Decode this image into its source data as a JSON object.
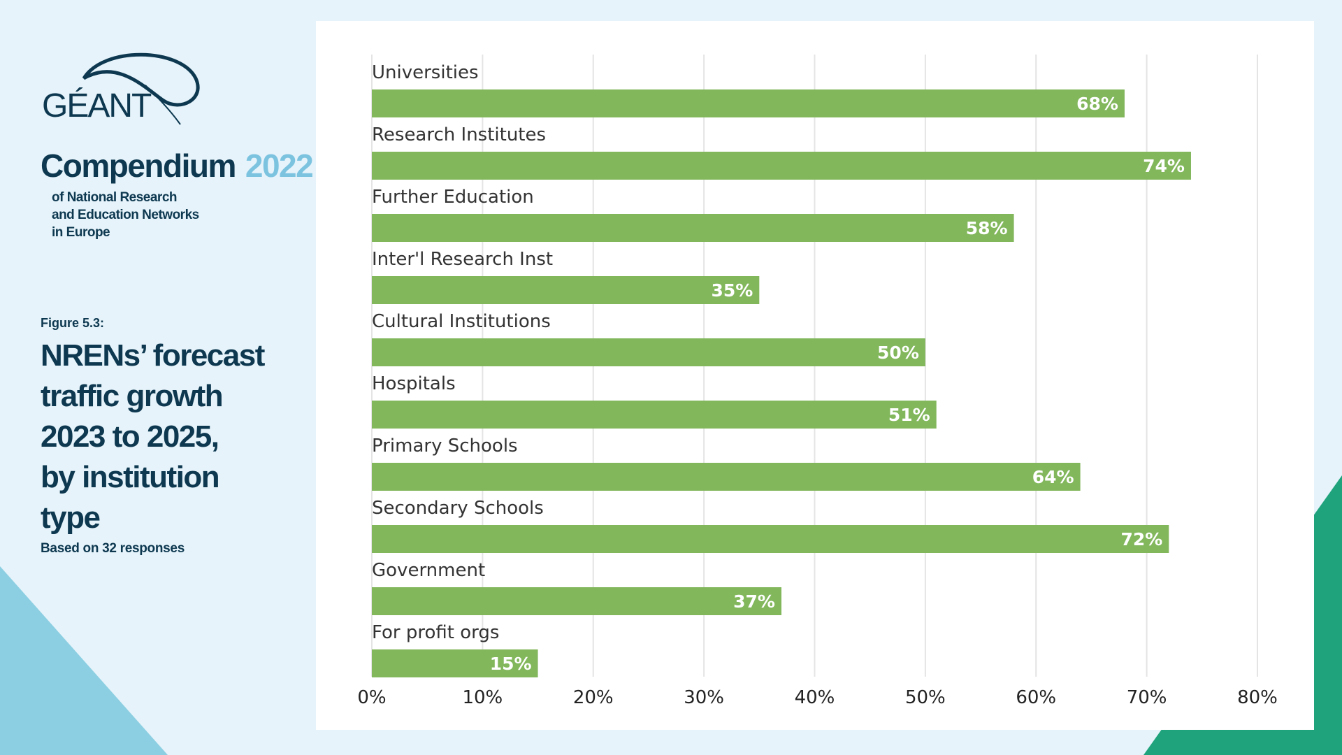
{
  "brand": {
    "logo_text": "GÉANT",
    "title": "Compendium",
    "year": "2022",
    "subtitle_lines": [
      "of National Research",
      "and Education Networks",
      "in Europe"
    ]
  },
  "figure": {
    "label": "Figure 5.3:",
    "title_lines": [
      "NRENs’ forecast",
      "traffic growth",
      "2023 to 2025,",
      "by institution type"
    ],
    "note": "Based on 32 responses"
  },
  "colors": {
    "bar": "#82b75c",
    "navy": "#0d3850",
    "light_blue": "#7cc3e0",
    "teal": "#1fa37c",
    "grid": "#e4e4e4"
  },
  "chart_data": {
    "type": "bar",
    "orientation": "horizontal",
    "categories": [
      "Universities",
      "Research Institutes",
      "Further Education",
      "Inter'l Research Inst",
      "Cultural Institutions",
      "Hospitals",
      "Primary Schools",
      "Secondary Schools",
      "Government",
      "For profit orgs"
    ],
    "values": [
      68,
      74,
      58,
      35,
      50,
      51,
      64,
      72,
      37,
      15
    ],
    "value_labels": [
      "68%",
      "74%",
      "58%",
      "35%",
      "50%",
      "51%",
      "64%",
      "72%",
      "37%",
      "15%"
    ],
    "xlim": [
      0,
      80
    ],
    "xticks": [
      0,
      10,
      20,
      30,
      40,
      50,
      60,
      70,
      80
    ],
    "xtick_labels": [
      "0%",
      "10%",
      "20%",
      "30%",
      "40%",
      "50%",
      "60%",
      "70%",
      "80%"
    ],
    "grid": true,
    "legend": "none"
  }
}
